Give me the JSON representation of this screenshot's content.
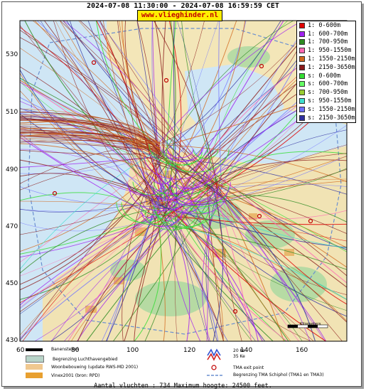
{
  "header": {
    "title": "2024-07-08 11:30:00 - 2024-07-08 16:59:59 CET",
    "brand": "www.vlieghinder.nl"
  },
  "axes": {
    "y_ticks": [
      "530",
      "510",
      "490",
      "470",
      "450",
      "430"
    ],
    "x_ticks": [
      "60",
      "80",
      "100",
      "120",
      "140",
      "160"
    ]
  },
  "legend": [
    {
      "label": "1: 0-600m",
      "color": "#e00000"
    },
    {
      "label": "1: 600-700m",
      "color": "#a020f0"
    },
    {
      "label": "1: 700-950m",
      "color": "#2e8b22"
    },
    {
      "label": "1: 950-1550m",
      "color": "#ff69b4"
    },
    {
      "label": "1: 1550-2150m",
      "color": "#d2691e"
    },
    {
      "label": "1: 2150-3650m",
      "color": "#8b1a1a"
    },
    {
      "label": "s: 0-600m",
      "color": "#33dd33"
    },
    {
      "label": "s: 600-700m",
      "color": "#66ff66"
    },
    {
      "label": "s: 700-950m",
      "color": "#9acd32"
    },
    {
      "label": "s: 950-1550m",
      "color": "#40e0d0"
    },
    {
      "label": "s: 1550-2150m",
      "color": "#7070ff"
    },
    {
      "label": "s: 2150-3650m",
      "color": "#3030a0"
    }
  ],
  "bottom_legend": {
    "banenstelsel": "Banenstelsel",
    "luchthaven": "Begrenzing Luchthavengebied",
    "woonbebouwing": "Woonbebouwing (update RWS-MD 2001)",
    "vinex": "Vinex2001 (bron: RPD)",
    "ke20": "20 Ke",
    "ke35": "35 Ke",
    "tma_exit": "TMA exit point",
    "tma_border": "Begrenzing TMA Schiphol  (TMA1 en TMA3)",
    "scale": "Kilometers"
  },
  "footer": "Aantal vluchten : 734 Maximum hoogte: 24500 feet."
}
